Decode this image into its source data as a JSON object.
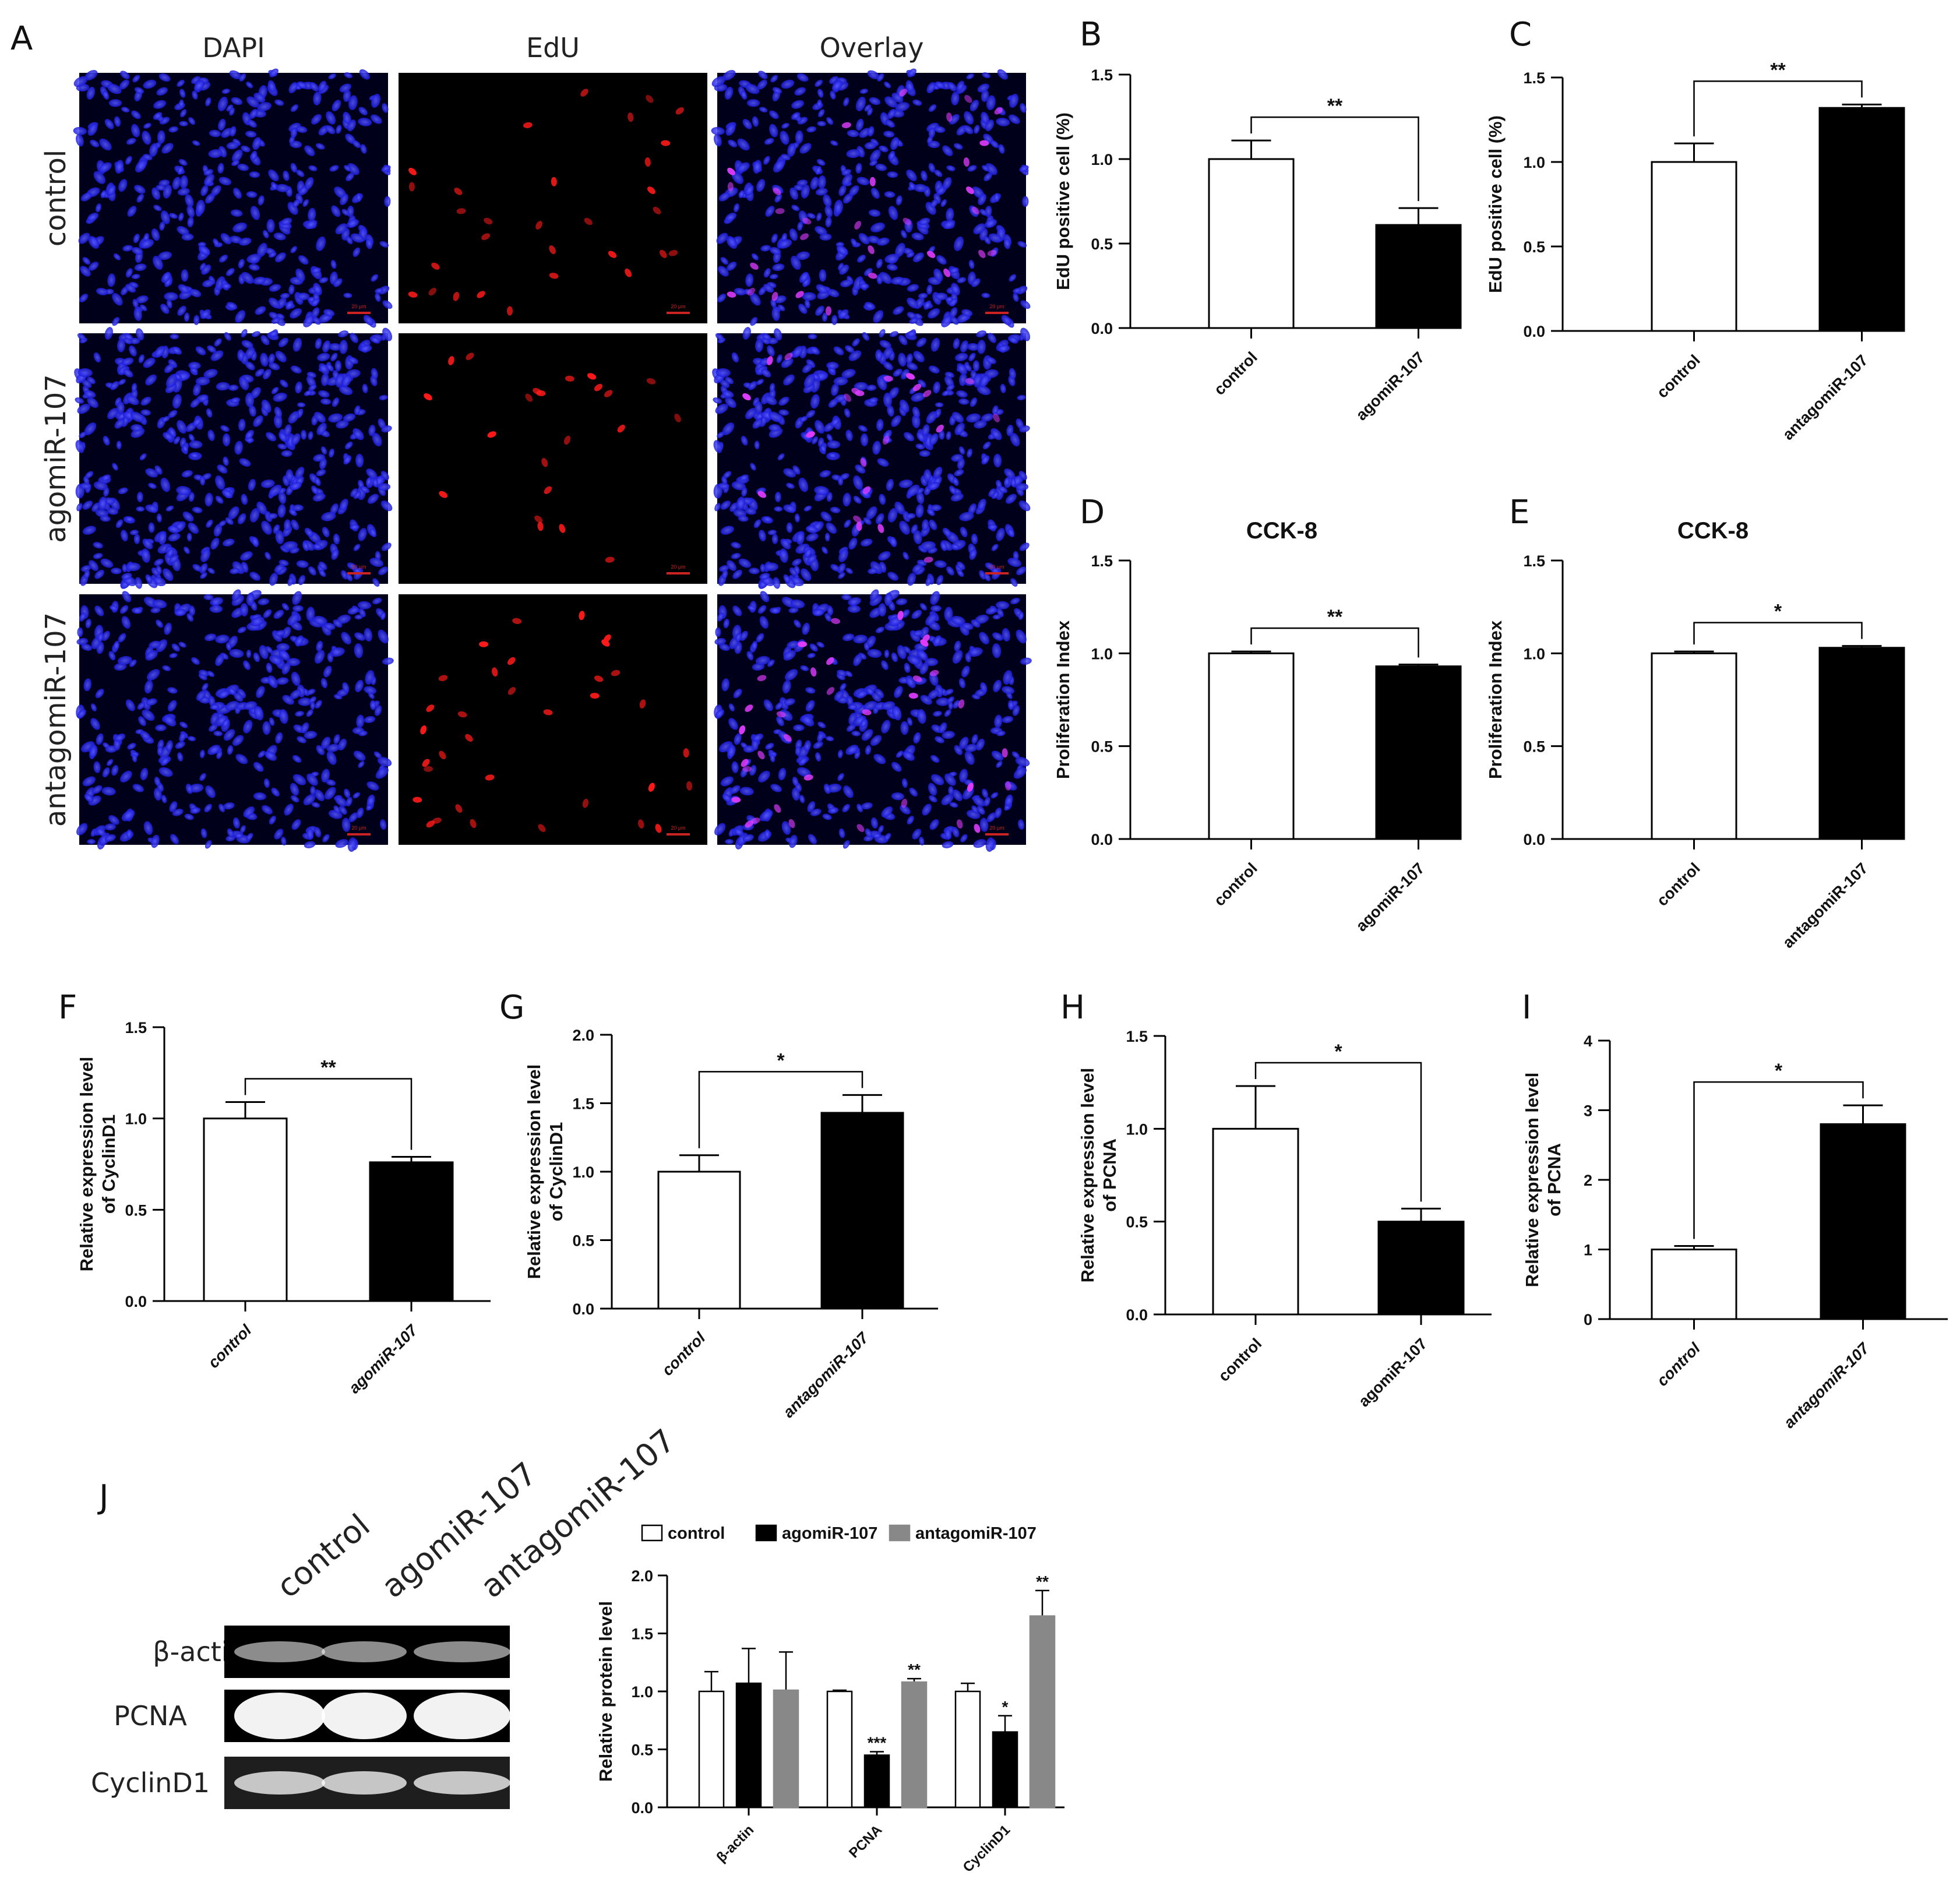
{
  "panel_letters": [
    "A",
    "B",
    "C",
    "D",
    "E",
    "F",
    "G",
    "H",
    "I",
    "J"
  ],
  "micrographs": {
    "columns": [
      "DAPI",
      "EdU",
      "Overlay"
    ],
    "rows": [
      "control",
      "agomiR-107",
      "antagomiR-107"
    ],
    "scalebar": "20 μm",
    "colors": {
      "dapi": "#1a1ad8",
      "edu": "#ff1a1a",
      "merge": "#e03cff",
      "bg": "#00001a"
    }
  },
  "blot": {
    "lanes": [
      "control",
      "agomiR-107",
      "antagomiR-107"
    ],
    "bands": [
      "β-actin",
      "PCNA",
      "CyclinD1"
    ]
  },
  "chart_data": [
    {
      "id": "B",
      "type": "bar",
      "title": "",
      "categories": [
        "control",
        "agomiR-107"
      ],
      "values": [
        1.0,
        0.61
      ],
      "errors": [
        0.11,
        0.1
      ],
      "ylabel": "EdU positive cell (%)",
      "ylim": [
        0,
        1.5
      ],
      "yticks": [
        "0.0",
        "0.5",
        "1.0",
        "1.5"
      ],
      "significance": "**",
      "colors": [
        "#ffffff",
        "#000000"
      ]
    },
    {
      "id": "C",
      "type": "bar",
      "title": "",
      "categories": [
        "control",
        "antagomiR-107"
      ],
      "values": [
        1.0,
        1.32
      ],
      "errors": [
        0.11,
        0.02
      ],
      "ylabel": "EdU positive cell (%)",
      "ylim": [
        0,
        1.5
      ],
      "yticks": [
        "0.0",
        "0.5",
        "1.0",
        "1.5"
      ],
      "significance": "**",
      "colors": [
        "#ffffff",
        "#000000"
      ]
    },
    {
      "id": "D",
      "type": "bar",
      "title": "CCK-8",
      "categories": [
        "control",
        "agomiR-107"
      ],
      "values": [
        1.0,
        0.93
      ],
      "errors": [
        0.01,
        0.01
      ],
      "ylabel": "Proliferation Index",
      "ylim": [
        0,
        1.5
      ],
      "yticks": [
        "0.0",
        "0.5",
        "1.0",
        "1.5"
      ],
      "significance": "**",
      "colors": [
        "#ffffff",
        "#000000"
      ]
    },
    {
      "id": "E",
      "type": "bar",
      "title": "CCK-8",
      "categories": [
        "control",
        "antagomiR-107"
      ],
      "values": [
        1.0,
        1.03
      ],
      "errors": [
        0.01,
        0.01
      ],
      "ylabel": "Proliferation Index",
      "ylim": [
        0,
        1.5
      ],
      "yticks": [
        "0.0",
        "0.5",
        "1.0",
        "1.5"
      ],
      "significance": "*",
      "colors": [
        "#ffffff",
        "#000000"
      ]
    },
    {
      "id": "F",
      "type": "bar",
      "title": "",
      "categories": [
        "control",
        "agomiR-107"
      ],
      "values": [
        1.0,
        0.76
      ],
      "errors": [
        0.09,
        0.03
      ],
      "ylabel": [
        "Relative expression level",
        "of CyclinD1"
      ],
      "ylim": [
        0,
        1.5
      ],
      "yticks": [
        "0.0",
        "0.5",
        "1.0",
        "1.5"
      ],
      "significance": "**",
      "colors": [
        "#ffffff",
        "#000000"
      ]
    },
    {
      "id": "G",
      "type": "bar",
      "title": "",
      "categories": [
        "control",
        "antagomiR-107"
      ],
      "values": [
        1.0,
        1.43
      ],
      "errors": [
        0.12,
        0.13
      ],
      "ylabel": [
        "Relative expression level",
        "of CyclinD1"
      ],
      "ylim": [
        0,
        2.0
      ],
      "yticks": [
        "0.0",
        "0.5",
        "1.0",
        "1.5",
        "2.0"
      ],
      "significance": "*",
      "colors": [
        "#ffffff",
        "#000000"
      ]
    },
    {
      "id": "H",
      "type": "bar",
      "title": "",
      "categories": [
        "control",
        "agomiR-107"
      ],
      "values": [
        1.0,
        0.5
      ],
      "errors": [
        0.23,
        0.07
      ],
      "ylabel": [
        "Relative expression level",
        "of PCNA"
      ],
      "ylim": [
        0,
        1.5
      ],
      "yticks": [
        "0.0",
        "0.5",
        "1.0",
        "1.5"
      ],
      "significance": "*",
      "colors": [
        "#ffffff",
        "#000000"
      ]
    },
    {
      "id": "I",
      "type": "bar",
      "title": "",
      "categories": [
        "control",
        "antagomiR-107"
      ],
      "values": [
        1.0,
        2.8
      ],
      "errors": [
        0.05,
        0.27
      ],
      "ylabel": [
        "Relative expression level",
        "of PCNA"
      ],
      "ylim": [
        0,
        4
      ],
      "yticks": [
        "0",
        "1",
        "2",
        "3",
        "4"
      ],
      "significance": "*",
      "colors": [
        "#ffffff",
        "#000000"
      ]
    },
    {
      "id": "J",
      "type": "bar",
      "title": "",
      "categories": [
        "β-actin",
        "PCNA",
        "CyclinD1"
      ],
      "series": [
        {
          "name": "control",
          "values": [
            1.0,
            1.0,
            1.0
          ],
          "errors": [
            0.17,
            0.01,
            0.07
          ],
          "color": "#ffffff"
        },
        {
          "name": "agomiR-107",
          "values": [
            1.07,
            0.45,
            0.65
          ],
          "errors": [
            0.3,
            0.03,
            0.14
          ],
          "color": "#000000"
        },
        {
          "name": "antagomiR-107",
          "values": [
            1.01,
            1.08,
            1.65
          ],
          "errors": [
            0.33,
            0.03,
            0.22
          ],
          "color": "#888888"
        }
      ],
      "significance": [
        [
          "",
          "",
          ""
        ],
        [
          "",
          "***",
          "**"
        ],
        [
          "",
          "*",
          "**"
        ]
      ],
      "ylabel": "Relative protein level",
      "ylim": [
        0,
        2.0
      ],
      "yticks": [
        "0.0",
        "0.5",
        "1.0",
        "1.5",
        "2.0"
      ],
      "legend": "top"
    }
  ]
}
